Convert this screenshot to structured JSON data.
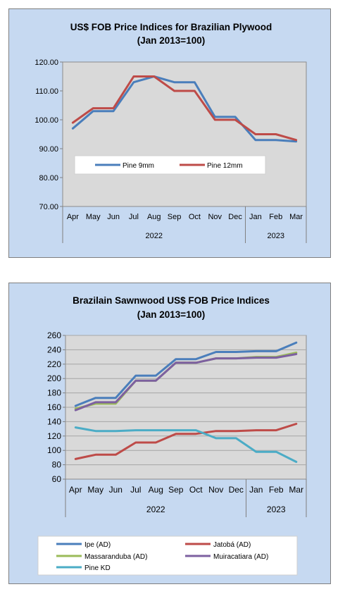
{
  "colors": {
    "panel_bg": "#c6d9f1",
    "plot_bg": "#d9d9d9",
    "blue": "#4a7ebb",
    "red": "#be4b48",
    "green": "#9bbb59",
    "purple": "#7d60a0",
    "cyan": "#4bacc6"
  },
  "chart_data": [
    {
      "type": "line",
      "title": "US$ FOB Price Indices for Brazilian  Plywood",
      "subtitle": "(Jan 2013=100)",
      "categories": [
        "Apr",
        "May",
        "Jun",
        "Jul",
        "Aug",
        "Sep",
        "Oct",
        "Nov",
        "Dec",
        "Jan",
        "Feb",
        "Mar"
      ],
      "year_groups": [
        {
          "label": "2022",
          "from": 0,
          "to": 8
        },
        {
          "label": "2023",
          "from": 9,
          "to": 11
        }
      ],
      "ylim": [
        70,
        120
      ],
      "yticks": [
        "70.00",
        "80.00",
        "90.00",
        "100.00",
        "110.00",
        "120.00"
      ],
      "grid": false,
      "legend": "inside-middle",
      "series": [
        {
          "name": "Pine 9mm",
          "color": "#4a7ebb",
          "values": [
            97,
            103,
            103,
            113,
            115,
            113,
            113,
            101,
            101,
            93,
            93,
            92.5
          ]
        },
        {
          "name": "Pine 12mm",
          "color": "#be4b48",
          "values": [
            99,
            104,
            104,
            115,
            115,
            110,
            110,
            100,
            100,
            95,
            95,
            93
          ]
        }
      ]
    },
    {
      "type": "line",
      "title": "Brazilain Sawnwood US$ FOB Price Indices",
      "subtitle": "(Jan 2013=100)",
      "categories": [
        "Apr",
        "May",
        "Jun",
        "Jul",
        "Aug",
        "Sep",
        "Oct",
        "Nov",
        "Dec",
        "Jan",
        "Feb",
        "Mar"
      ],
      "year_groups": [
        {
          "label": "2022",
          "from": 0,
          "to": 8
        },
        {
          "label": "2023",
          "from": 9,
          "to": 11
        }
      ],
      "ylim": [
        60,
        260
      ],
      "yticks": [
        "60",
        "80",
        "100",
        "120",
        "140",
        "160",
        "180",
        "200",
        "220",
        "240",
        "260"
      ],
      "grid": true,
      "legend": "bottom",
      "series": [
        {
          "name": "Ipe (AD)",
          "color": "#4a7ebb",
          "values": [
            162,
            173,
            173,
            204,
            204,
            227,
            227,
            237,
            237,
            238,
            238,
            250
          ]
        },
        {
          "name": "Jatobá (AD)",
          "color": "#be4b48",
          "values": [
            88,
            94,
            94,
            111,
            111,
            123,
            123,
            127,
            127,
            128,
            128,
            137
          ]
        },
        {
          "name": "Massaranduba (AD)",
          "color": "#9bbb59",
          "values": [
            158,
            165,
            165,
            197,
            197,
            222,
            222,
            228,
            228,
            230,
            230,
            236
          ]
        },
        {
          "name": "Muiracatiara (AD)",
          "color": "#7d60a0",
          "values": [
            156,
            167,
            167,
            197,
            197,
            222,
            222,
            228,
            228,
            229,
            229,
            234
          ]
        },
        {
          "name": "Pine KD",
          "color": "#4bacc6",
          "values": [
            132,
            127,
            127,
            128,
            128,
            128,
            128,
            117,
            117,
            98,
            98,
            84
          ]
        }
      ]
    }
  ]
}
